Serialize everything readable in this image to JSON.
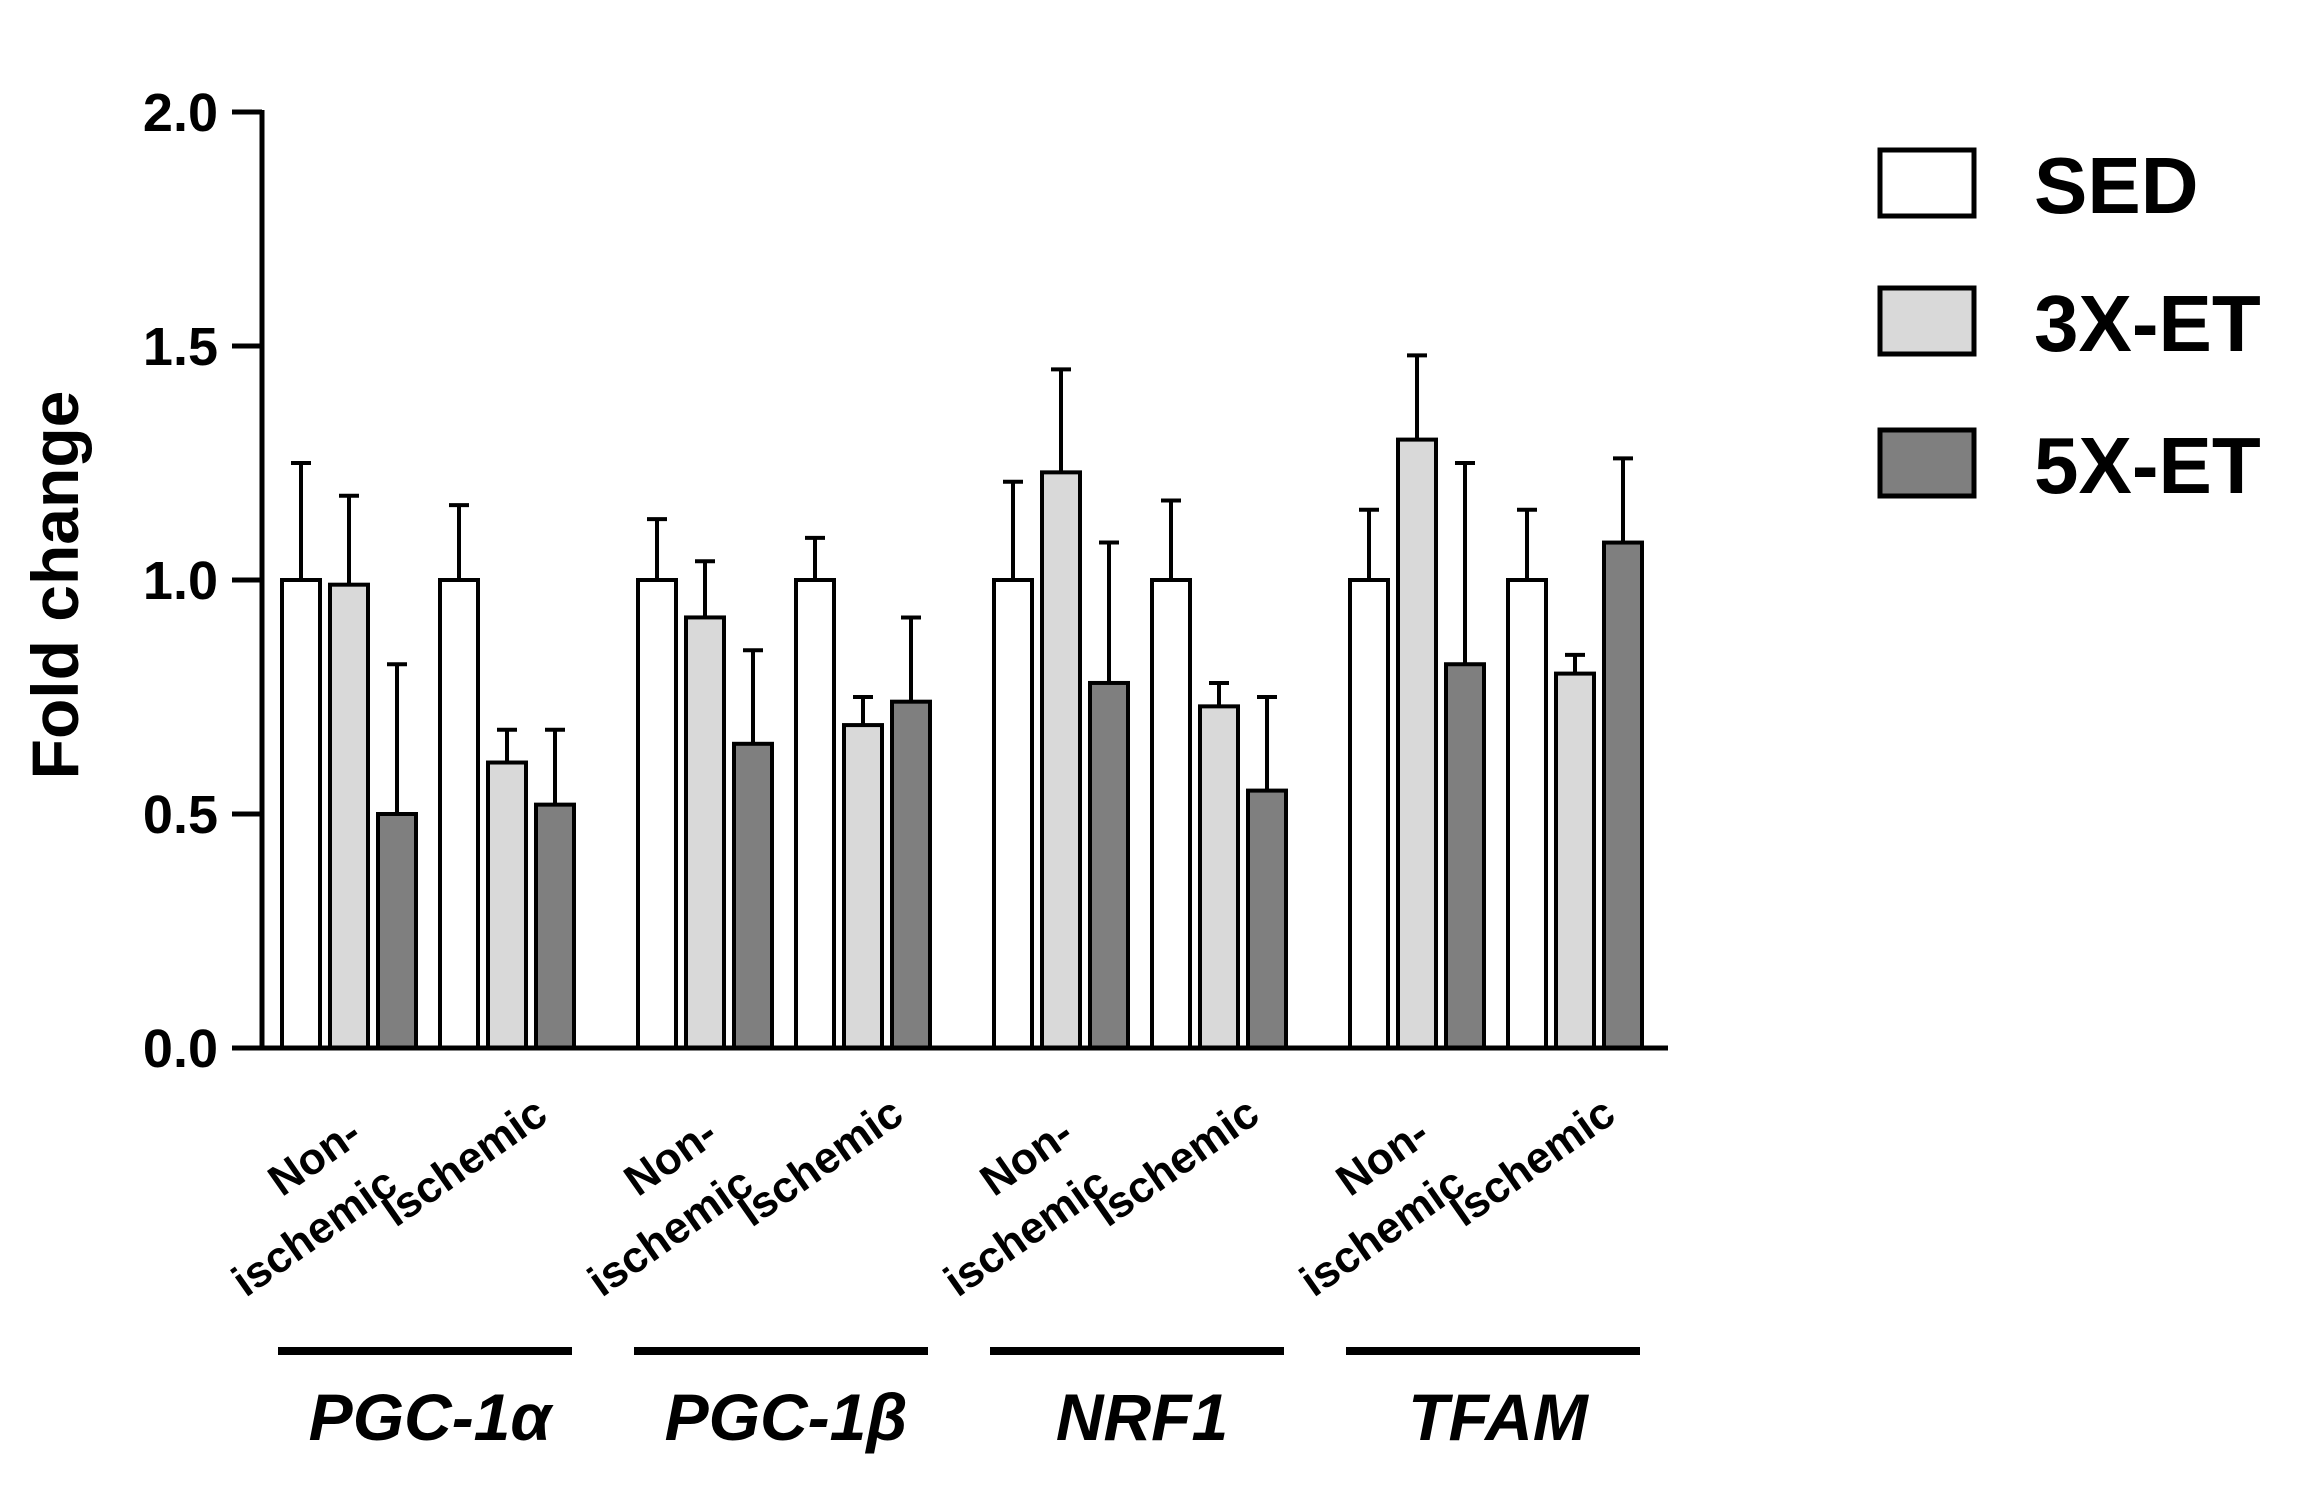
{
  "chart_data": {
    "type": "bar",
    "title": "",
    "xlabel": "",
    "ylabel": "Fold change",
    "ylim": [
      0,
      2.0
    ],
    "yticks": [
      "0.0",
      "0.5",
      "1.0",
      "1.5",
      "2.0"
    ],
    "legend_position": "top-right",
    "groups": [
      {
        "gene": "PGC-1α",
        "conditions": [
          {
            "label_lines": [
              "Non-",
              "ischemic"
            ],
            "values": [
              1.0,
              0.99,
              0.5
            ],
            "errors": [
              0.25,
              0.19,
              0.32
            ]
          },
          {
            "label_lines": [
              "Ischemic"
            ],
            "values": [
              1.0,
              0.61,
              0.52
            ],
            "errors": [
              0.16,
              0.07,
              0.16
            ]
          }
        ]
      },
      {
        "gene": "PGC-1β",
        "conditions": [
          {
            "label_lines": [
              "Non-",
              "ischemic"
            ],
            "values": [
              1.0,
              0.92,
              0.65
            ],
            "errors": [
              0.13,
              0.12,
              0.2
            ]
          },
          {
            "label_lines": [
              "Ischemic"
            ],
            "values": [
              1.0,
              0.69,
              0.74
            ],
            "errors": [
              0.09,
              0.06,
              0.18
            ]
          }
        ]
      },
      {
        "gene": "NRF1",
        "conditions": [
          {
            "label_lines": [
              "Non-",
              "ischemic"
            ],
            "values": [
              1.0,
              1.23,
              0.78
            ],
            "errors": [
              0.21,
              0.22,
              0.3
            ]
          },
          {
            "label_lines": [
              "Ischemic"
            ],
            "values": [
              1.0,
              0.73,
              0.55
            ],
            "errors": [
              0.17,
              0.05,
              0.2
            ]
          }
        ]
      },
      {
        "gene": "TFAM",
        "conditions": [
          {
            "label_lines": [
              "Non-",
              "ischemic"
            ],
            "values": [
              1.0,
              1.3,
              0.82
            ],
            "errors": [
              0.15,
              0.18,
              0.43
            ]
          },
          {
            "label_lines": [
              "Ischemic"
            ],
            "values": [
              1.0,
              0.8,
              1.08
            ],
            "errors": [
              0.15,
              0.04,
              0.18
            ]
          }
        ]
      }
    ],
    "series": [
      {
        "name": "SED",
        "color": "#ffffff"
      },
      {
        "name": "3X-ET",
        "color": "#d9d9d9"
      },
      {
        "name": "5X-ET",
        "color": "#7f7f7f"
      }
    ]
  }
}
